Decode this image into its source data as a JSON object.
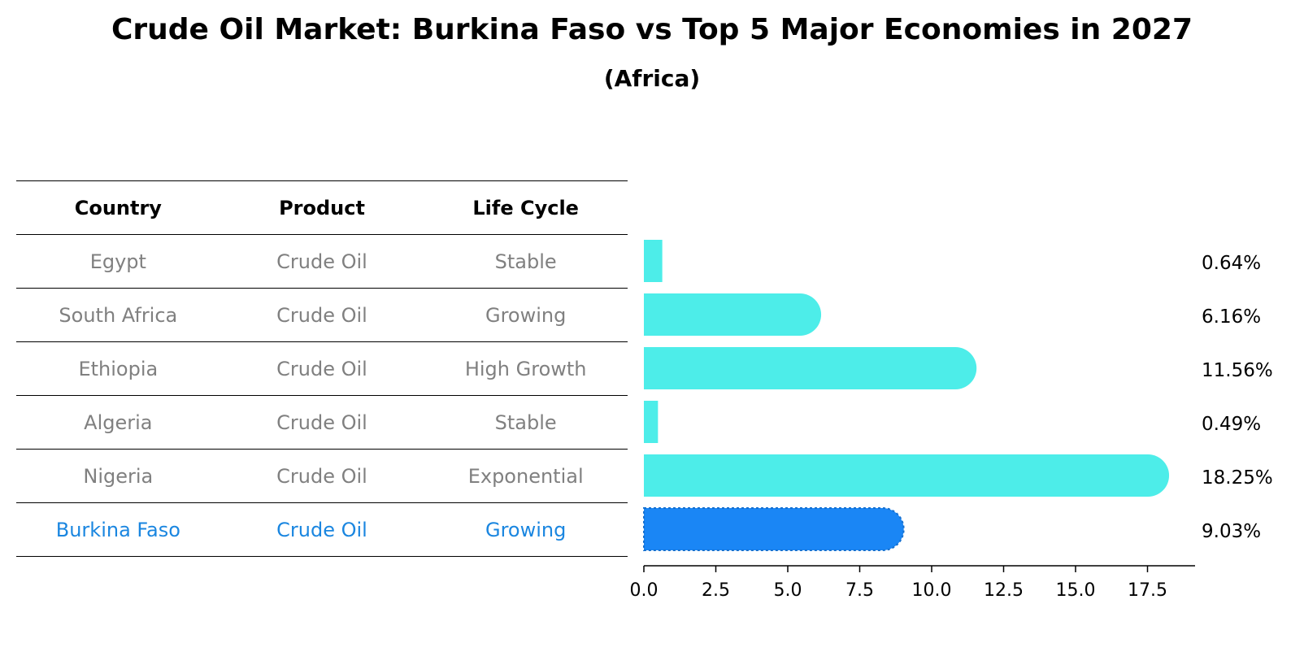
{
  "header": {
    "title": "Crude Oil Market: Burkina Faso vs Top 5 Major Economies in 2027",
    "subtitle": "(Africa)"
  },
  "table": {
    "columns": [
      "Country",
      "Product",
      "Life Cycle"
    ],
    "rows": [
      {
        "country": "Egypt",
        "product": "Crude Oil",
        "life_cycle": "Stable"
      },
      {
        "country": "South Africa",
        "product": "Crude Oil",
        "life_cycle": "Growing"
      },
      {
        "country": "Ethiopia",
        "product": "Crude Oil",
        "life_cycle": "High Growth"
      },
      {
        "country": "Algeria",
        "product": "Crude Oil",
        "life_cycle": "Stable"
      },
      {
        "country": "Nigeria",
        "product": "Crude Oil",
        "life_cycle": "Exponential"
      },
      {
        "country": "Burkina Faso",
        "product": "Crude Oil",
        "life_cycle": "Growing"
      }
    ]
  },
  "chart_data": {
    "type": "bar",
    "orientation": "horizontal",
    "categories": [
      "Egypt",
      "South Africa",
      "Ethiopia",
      "Algeria",
      "Nigeria",
      "Burkina Faso"
    ],
    "values": [
      0.64,
      6.16,
      11.56,
      0.49,
      18.25,
      9.03
    ],
    "data_labels": [
      "0.64%",
      "6.16%",
      "11.56%",
      "0.49%",
      "18.25%",
      "9.03%"
    ],
    "highlight": "Burkina Faso",
    "xlim": [
      0,
      19.2
    ],
    "xticks": [
      0.0,
      2.5,
      5.0,
      7.5,
      10.0,
      12.5,
      15.0,
      17.5
    ],
    "xtick_labels": [
      "0.0",
      "2.5",
      "5.0",
      "7.5",
      "10.0",
      "12.5",
      "15.0",
      "17.5"
    ],
    "colors": {
      "default": "#4dede9",
      "highlight": "#1a86f5"
    }
  }
}
